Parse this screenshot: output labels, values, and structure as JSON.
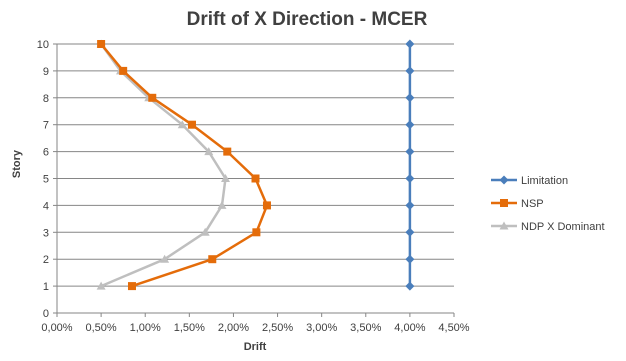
{
  "chart_data": {
    "type": "line",
    "title": "Drift of X Direction - MCER",
    "xlabel": "Drift",
    "ylabel": "Story",
    "xlim": [
      0,
      0.045
    ],
    "ylim": [
      0,
      10
    ],
    "x_ticks": [
      0,
      0.005,
      0.01,
      0.015,
      0.02,
      0.025,
      0.03,
      0.035,
      0.04,
      0.045
    ],
    "x_tick_labels": [
      "0,00%",
      "0,50%",
      "1,00%",
      "1,50%",
      "2,00%",
      "2,50%",
      "3,00%",
      "3,50%",
      "4,00%",
      "4,50%"
    ],
    "y_ticks": [
      0,
      1,
      2,
      3,
      4,
      5,
      6,
      7,
      8,
      9,
      10
    ],
    "y_tick_labels": [
      "0",
      "1",
      "2",
      "3",
      "4",
      "5",
      "6",
      "7",
      "8",
      "9",
      "10"
    ],
    "grid": "horizontal",
    "legend_position": "right",
    "series": [
      {
        "name": "Limitation",
        "color": "#4A7EBB",
        "marker": "diamond",
        "points": [
          [
            0.04,
            1
          ],
          [
            0.04,
            2
          ],
          [
            0.04,
            3
          ],
          [
            0.04,
            4
          ],
          [
            0.04,
            5
          ],
          [
            0.04,
            6
          ],
          [
            0.04,
            7
          ],
          [
            0.04,
            8
          ],
          [
            0.04,
            9
          ],
          [
            0.04,
            10
          ]
        ]
      },
      {
        "name": "NSP",
        "color": "#E46C0A",
        "marker": "square",
        "points": [
          [
            0.0085,
            1
          ],
          [
            0.0176,
            2
          ],
          [
            0.0226,
            3
          ],
          [
            0.0238,
            4
          ],
          [
            0.0225,
            5
          ],
          [
            0.0193,
            6
          ],
          [
            0.0153,
            7
          ],
          [
            0.0108,
            8
          ],
          [
            0.0075,
            9
          ],
          [
            0.005,
            10
          ]
        ]
      },
      {
        "name": "NDP X Dominant",
        "color": "#BFBFBF",
        "marker": "triangle",
        "points": [
          [
            0.005,
            1
          ],
          [
            0.0122,
            2
          ],
          [
            0.0168,
            3
          ],
          [
            0.0187,
            4
          ],
          [
            0.0191,
            5
          ],
          [
            0.0172,
            6
          ],
          [
            0.0142,
            7
          ],
          [
            0.0104,
            8
          ],
          [
            0.0072,
            9
          ],
          [
            0.005,
            10
          ]
        ]
      }
    ]
  }
}
